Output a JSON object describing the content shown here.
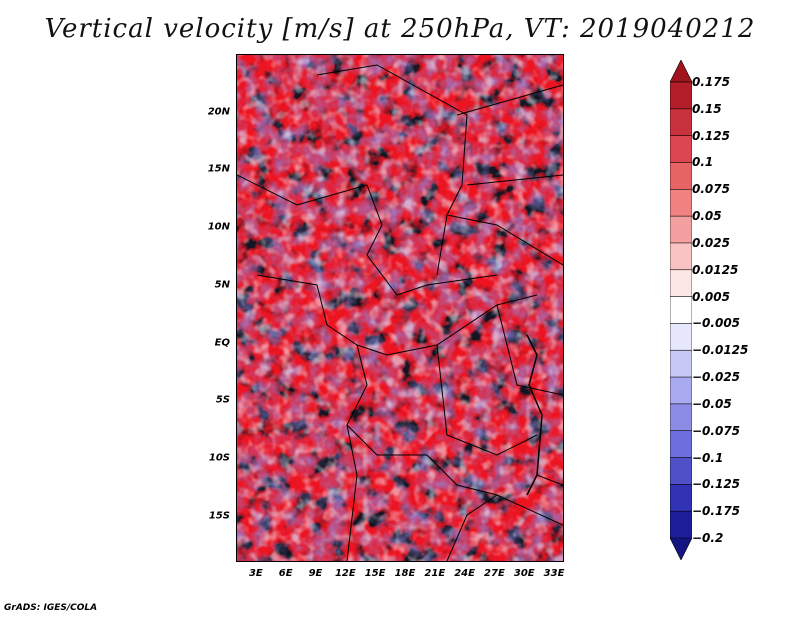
{
  "title": "Vertical velocity [m/s] at 250hPa, VT: 2019040212",
  "credit": "GrADS: IGES/COLA",
  "map": {
    "lat_range": [
      -19,
      25
    ],
    "lon_range": [
      1,
      34
    ],
    "lat_labels": [
      "20N",
      "15N",
      "10N",
      "5N",
      "EQ",
      "5S",
      "10S",
      "15S"
    ],
    "lat_values": [
      20,
      15,
      10,
      5,
      0,
      -5,
      -10,
      -15
    ],
    "lon_labels": [
      "3E",
      "6E",
      "9E",
      "12E",
      "15E",
      "18E",
      "21E",
      "24E",
      "27E",
      "30E",
      "33E"
    ],
    "lon_values": [
      3,
      6,
      9,
      12,
      15,
      18,
      21,
      24,
      27,
      30,
      33
    ]
  },
  "colorbar": {
    "labels": [
      "0.175",
      "0.15",
      "0.125",
      "0.1",
      "0.075",
      "0.05",
      "0.025",
      "0.0125",
      "0.005",
      "−0.005",
      "−0.0125",
      "−0.025",
      "−0.05",
      "−0.075",
      "−0.1",
      "−0.125",
      "−0.175",
      "−0.2"
    ],
    "colors": [
      "#a0141e",
      "#b41e28",
      "#c8323c",
      "#dc4650",
      "#e66464",
      "#f08282",
      "#f5a0a0",
      "#fac3c3",
      "#fde6e6",
      "#ffffff",
      "#e6e6fd",
      "#c8c8f5",
      "#aaaaf0",
      "#8c8ce6",
      "#6e6edc",
      "#5050c8",
      "#3232b4",
      "#1e1e9b",
      "#141482"
    ]
  }
}
